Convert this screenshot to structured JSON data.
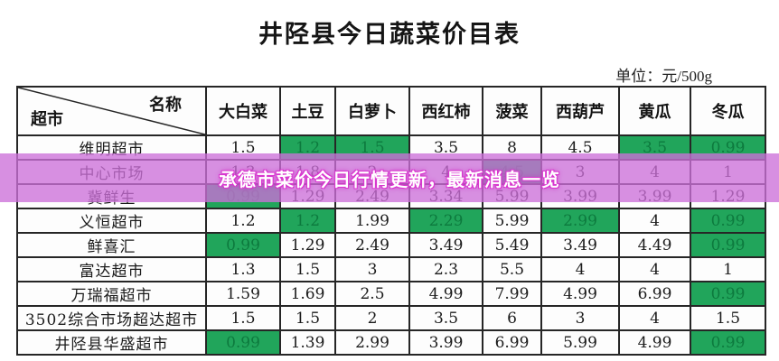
{
  "title": "井陉县今日蔬菜价目表",
  "unit_label": "单位：元/500g",
  "overlay_banner": {
    "text": "承德市菜价今日行情更新，最新消息一览",
    "background_color": "#cc70d8",
    "text_color": "#ffffff",
    "glow_color": "#d936cf"
  },
  "colors": {
    "highlight_green_bg": "#21a55b",
    "highlight_green_text": "#0d7a3e",
    "border": "#262626"
  },
  "table": {
    "corner": {
      "top_right_label": "名称",
      "bottom_left_label": "超市"
    },
    "columns": [
      "大白菜",
      "土豆",
      "白萝卜",
      "西红柿",
      "菠菜",
      "西葫芦",
      "黄瓜",
      "冬瓜"
    ],
    "rows": [
      {
        "name": "维明超市",
        "cells": [
          {
            "v": "1.5",
            "green": false
          },
          {
            "v": "1.2",
            "green": true
          },
          {
            "v": "1.5",
            "green": true
          },
          {
            "v": "3.5",
            "green": false
          },
          {
            "v": "8",
            "green": false
          },
          {
            "v": "4.5",
            "green": false
          },
          {
            "v": "3.5",
            "green": true
          },
          {
            "v": "0.99",
            "green": true
          }
        ]
      },
      {
        "name": "中心市场",
        "cells": [
          {
            "v": "1.3",
            "green": false
          },
          {
            "v": "1.8",
            "green": false
          },
          {
            "v": "2",
            "green": false
          },
          {
            "v": "4",
            "green": false
          },
          {
            "v": "4.5",
            "green": true
          },
          {
            "v": "3",
            "green": false
          },
          {
            "v": "4",
            "green": false
          },
          {
            "v": "1",
            "green": false
          }
        ]
      },
      {
        "name": "冀鲜生",
        "cells": [
          {
            "v": "0.99",
            "green": true
          },
          {
            "v": "1.29",
            "green": false
          },
          {
            "v": "2.49",
            "green": false
          },
          {
            "v": "3.34",
            "green": false
          },
          {
            "v": "5.99",
            "green": false
          },
          {
            "v": "3.99",
            "green": false
          },
          {
            "v": "3.99",
            "green": false
          },
          {
            "v": "1.29",
            "green": false
          }
        ]
      },
      {
        "name": "义恒超市",
        "cells": [
          {
            "v": "1.2",
            "green": false
          },
          {
            "v": "1.2",
            "green": true
          },
          {
            "v": "1.99",
            "green": false
          },
          {
            "v": "2.29",
            "green": true
          },
          {
            "v": "5.99",
            "green": false
          },
          {
            "v": "2.99",
            "green": true
          },
          {
            "v": "4",
            "green": false
          },
          {
            "v": "0.99",
            "green": true
          }
        ]
      },
      {
        "name": "鲜喜汇",
        "cells": [
          {
            "v": "0.99",
            "green": true
          },
          {
            "v": "1.29",
            "green": false
          },
          {
            "v": "2.49",
            "green": false
          },
          {
            "v": "3.49",
            "green": false
          },
          {
            "v": "5.49",
            "green": false
          },
          {
            "v": "3.49",
            "green": false
          },
          {
            "v": "4.49",
            "green": false
          },
          {
            "v": "0.99",
            "green": true
          }
        ]
      },
      {
        "name": "富达超市",
        "cells": [
          {
            "v": "1.3",
            "green": false
          },
          {
            "v": "1.5",
            "green": false
          },
          {
            "v": "3",
            "green": false
          },
          {
            "v": "2.3",
            "green": false
          },
          {
            "v": "5.5",
            "green": false
          },
          {
            "v": "4",
            "green": false
          },
          {
            "v": "4",
            "green": false
          },
          {
            "v": "1",
            "green": false
          }
        ]
      },
      {
        "name": "万瑞福超市",
        "cells": [
          {
            "v": "1.59",
            "green": false
          },
          {
            "v": "1.69",
            "green": false
          },
          {
            "v": "2.5",
            "green": false
          },
          {
            "v": "4.99",
            "green": false
          },
          {
            "v": "7.99",
            "green": false
          },
          {
            "v": "4.99",
            "green": false
          },
          {
            "v": "6.99",
            "green": false
          },
          {
            "v": "0.99",
            "green": true
          }
        ]
      },
      {
        "name": "3502综合市场超达超市",
        "cells": [
          {
            "v": "1.5",
            "green": false
          },
          {
            "v": "1.5",
            "green": false
          },
          {
            "v": "2",
            "green": false
          },
          {
            "v": "3.5",
            "green": false
          },
          {
            "v": "6",
            "green": false
          },
          {
            "v": "3",
            "green": false
          },
          {
            "v": "4",
            "green": false
          },
          {
            "v": "1.5",
            "green": false
          }
        ]
      },
      {
        "name": "井陉县华盛超市",
        "cells": [
          {
            "v": "0.99",
            "green": true
          },
          {
            "v": "1.39",
            "green": false
          },
          {
            "v": "2.99",
            "green": false
          },
          {
            "v": "3.99",
            "green": false
          },
          {
            "v": "6.99",
            "green": false
          },
          {
            "v": "5.99",
            "green": false
          },
          {
            "v": "4.99",
            "green": false
          },
          {
            "v": "0.99",
            "green": true
          }
        ]
      }
    ]
  }
}
